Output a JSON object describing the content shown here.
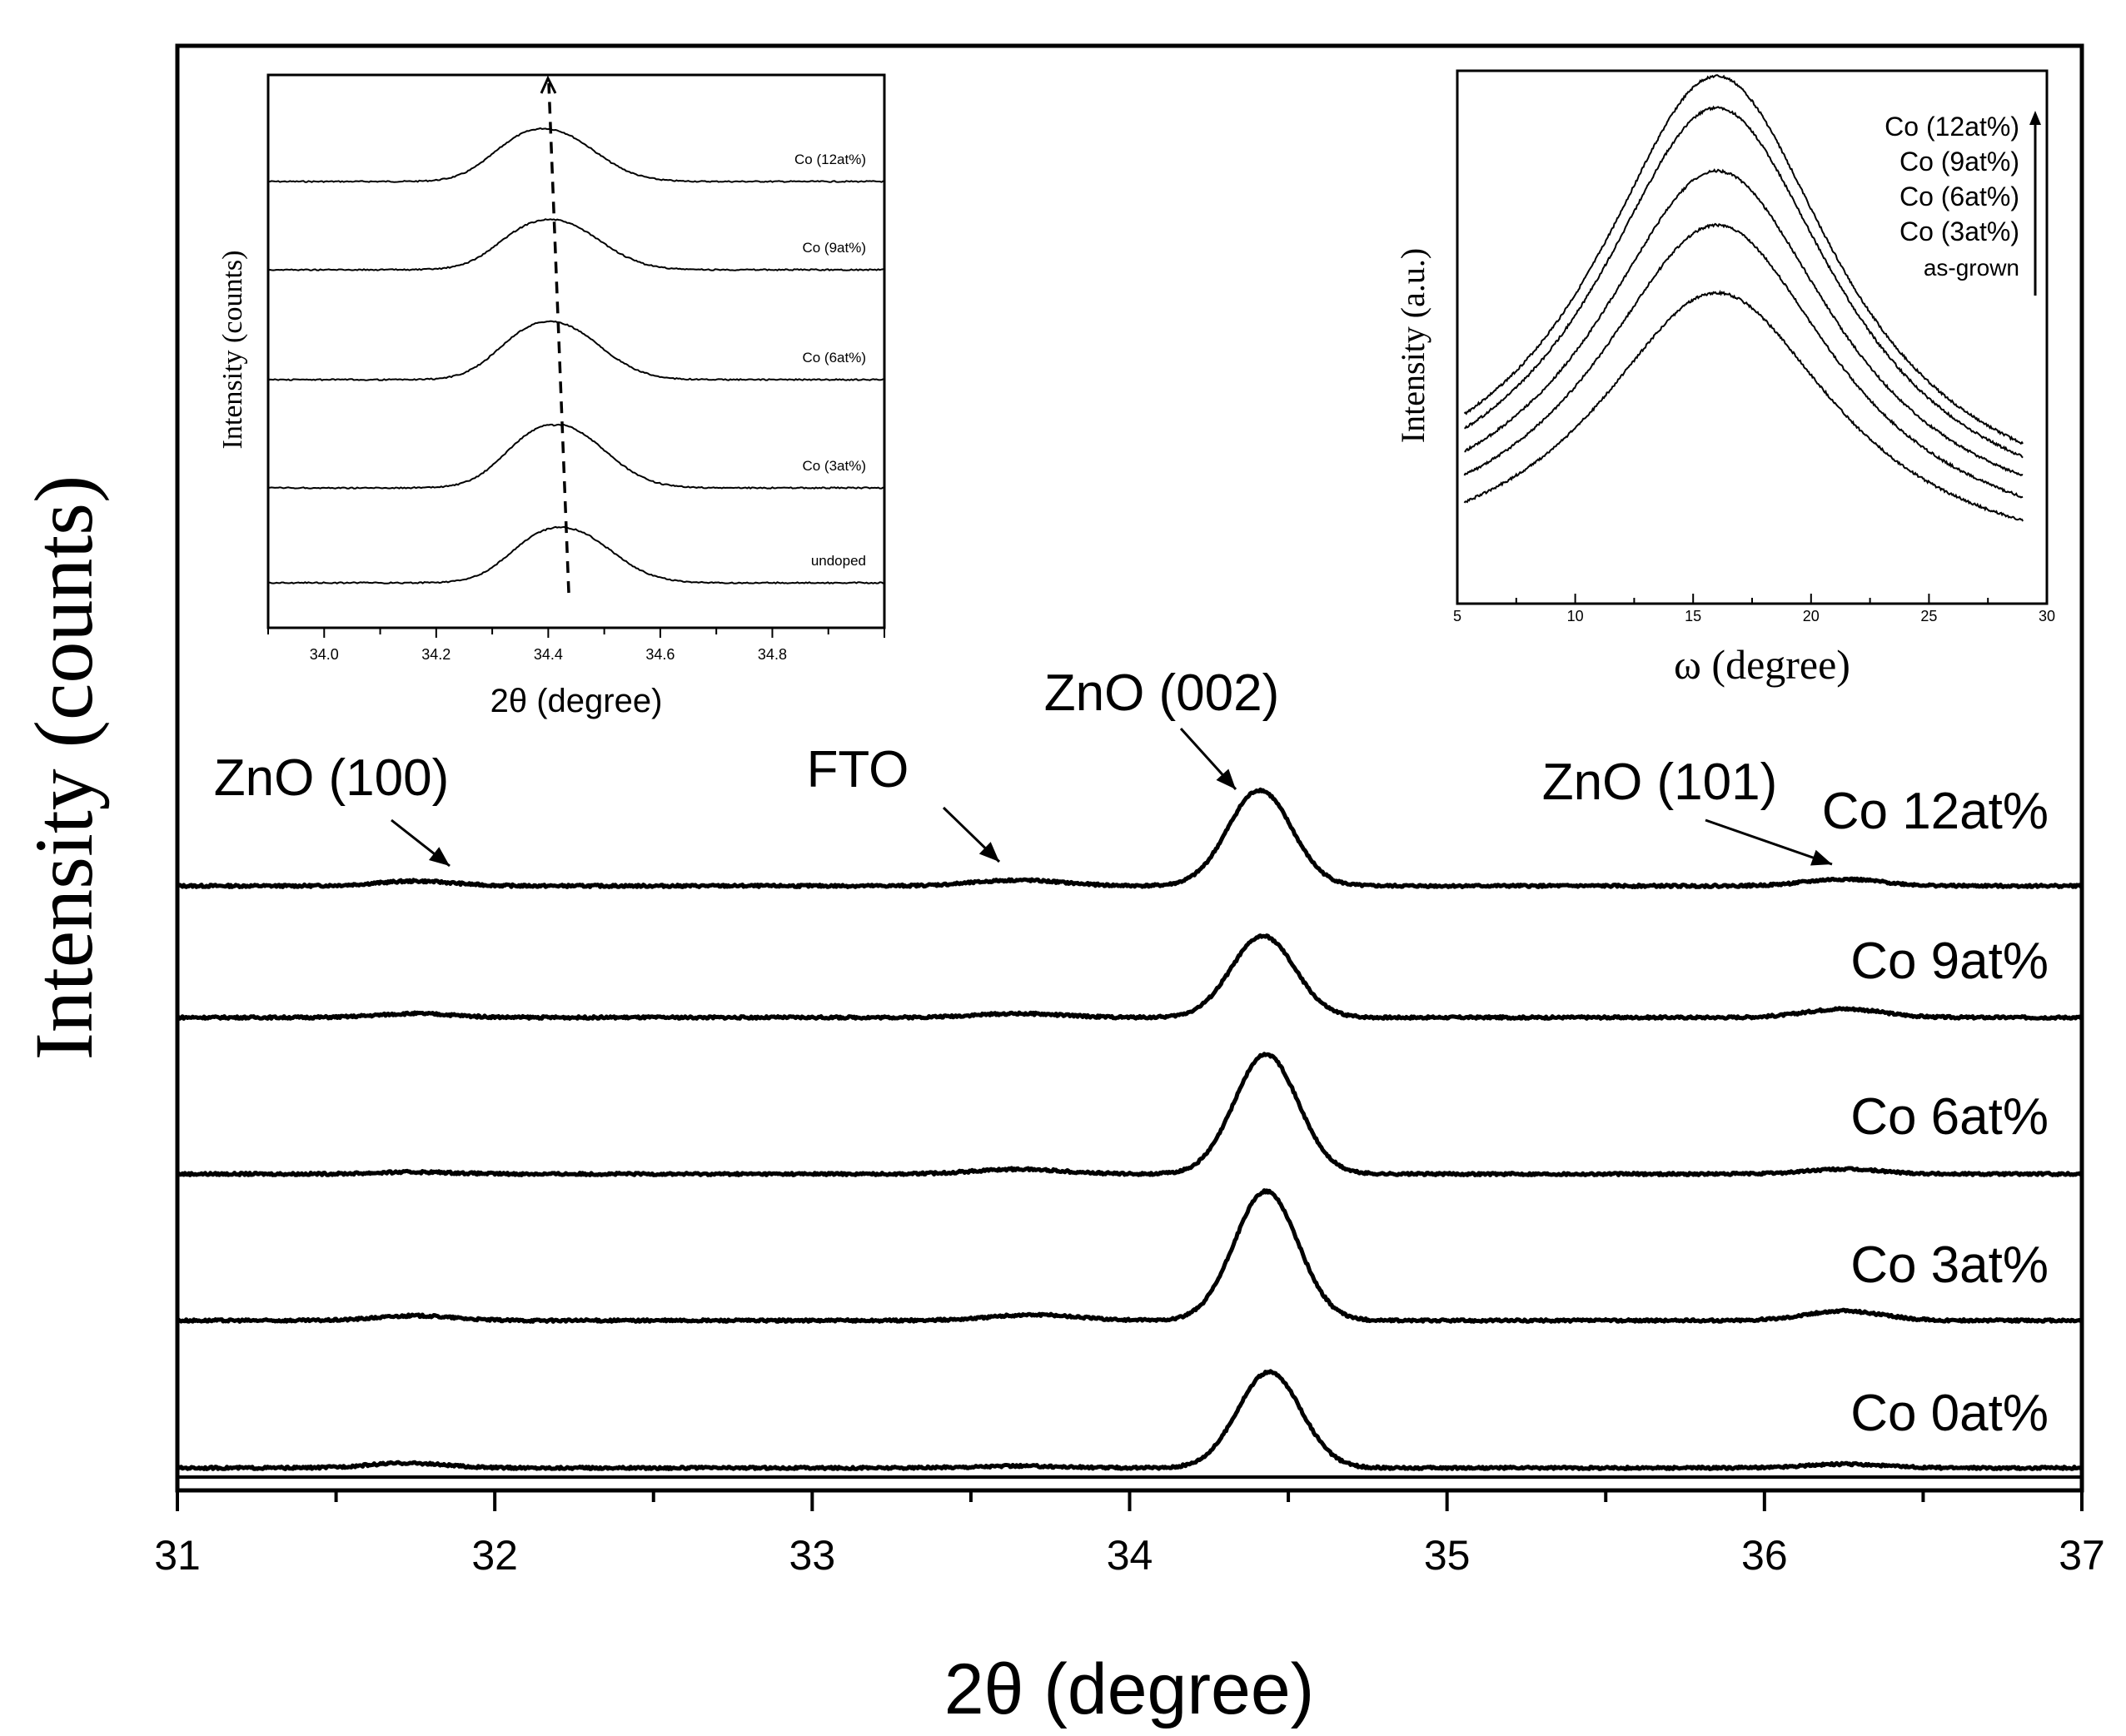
{
  "chart_data": [
    {
      "type": "line",
      "title": "",
      "xlabel": "2θ (degree)",
      "ylabel": "Intensity (counts)",
      "xlim": [
        31,
        37
      ],
      "x_ticks": [
        31,
        32,
        33,
        34,
        35,
        36,
        37
      ],
      "x_tick_labels": [
        "31",
        "32",
        "33",
        "34",
        "35",
        "36",
        "37"
      ],
      "y_ticks_shown": false,
      "grid": false,
      "profile_relative_intensity_units": "relative to ZnO (002) peak height = 1.0 per trace",
      "series": [
        {
          "name": "Co 12at%",
          "offset": 4,
          "peaks": [
            {
              "label": "ZnO (100)",
              "x": 31.75,
              "height": 0.05,
              "width": 0.12
            },
            {
              "label": "FTO",
              "x": 33.65,
              "height": 0.06,
              "width": 0.14
            },
            {
              "label": "ZnO (002)",
              "x": 34.41,
              "height": 1.0,
              "width": 0.1
            },
            {
              "label": "ZnO (101)",
              "x": 36.25,
              "height": 0.07,
              "width": 0.12
            }
          ]
        },
        {
          "name": "Co 9at%",
          "offset": 3,
          "peaks": [
            {
              "label": "ZnO (100)",
              "x": 31.75,
              "height": 0.04,
              "width": 0.12
            },
            {
              "label": "FTO",
              "x": 33.65,
              "height": 0.04,
              "width": 0.14
            },
            {
              "label": "ZnO (002)",
              "x": 34.42,
              "height": 0.85,
              "width": 0.1
            },
            {
              "label": "ZnO (101)",
              "x": 36.25,
              "height": 0.09,
              "width": 0.12
            }
          ]
        },
        {
          "name": "Co 6at%",
          "offset": 2,
          "peaks": [
            {
              "label": "ZnO (100)",
              "x": 31.75,
              "height": 0.02,
              "width": 0.12
            },
            {
              "label": "FTO",
              "x": 33.65,
              "height": 0.05,
              "width": 0.14
            },
            {
              "label": "ZnO (002)",
              "x": 34.43,
              "height": 1.25,
              "width": 0.1
            },
            {
              "label": "ZnO (101)",
              "x": 36.25,
              "height": 0.05,
              "width": 0.12
            }
          ]
        },
        {
          "name": "Co 3at%",
          "offset": 1,
          "peaks": [
            {
              "label": "ZnO (100)",
              "x": 31.75,
              "height": 0.05,
              "width": 0.12
            },
            {
              "label": "FTO",
              "x": 33.7,
              "height": 0.06,
              "width": 0.14
            },
            {
              "label": "ZnO (002)",
              "x": 34.43,
              "height": 1.35,
              "width": 0.1
            },
            {
              "label": "ZnO (101)",
              "x": 36.25,
              "height": 0.1,
              "width": 0.12
            }
          ]
        },
        {
          "name": "Co 0at%",
          "offset": 0,
          "peaks": [
            {
              "label": "ZnO (100)",
              "x": 31.72,
              "height": 0.05,
              "width": 0.12
            },
            {
              "label": "FTO",
              "x": 33.65,
              "height": 0.02,
              "width": 0.14
            },
            {
              "label": "ZnO (002)",
              "x": 34.44,
              "height": 1.0,
              "width": 0.1
            },
            {
              "label": "ZnO (101)",
              "x": 36.25,
              "height": 0.04,
              "width": 0.12
            }
          ]
        }
      ],
      "annotations": [
        {
          "text": "ZnO (100)",
          "points_to_x": 31.85
        },
        {
          "text": "FTO",
          "points_to_x": 33.62
        },
        {
          "text": "ZnO (002)",
          "points_to_x": 34.36
        },
        {
          "text": "ZnO (101)",
          "points_to_x": 36.2
        }
      ]
    },
    {
      "type": "line",
      "title": "",
      "xlabel": "2θ (degree)",
      "ylabel": "Intensity (counts)",
      "xlim": [
        33.9,
        35.0
      ],
      "x_ticks": [
        34.0,
        34.2,
        34.4,
        34.6,
        34.8
      ],
      "x_tick_labels": [
        "34.0",
        "34.2",
        "34.4",
        "34.6",
        "34.8"
      ],
      "series": [
        {
          "name": "Co (12at%)",
          "offset": 4,
          "peak_x": 34.41,
          "height": 1.0
        },
        {
          "name": "Co (9at%)",
          "offset": 3,
          "peak_x": 34.42,
          "height": 0.95
        },
        {
          "name": "Co (6at%)",
          "offset": 2,
          "peak_x": 34.42,
          "height": 1.1
        },
        {
          "name": "Co (3at%)",
          "offset": 1,
          "peak_x": 34.43,
          "height": 1.2
        },
        {
          "name": "undoped",
          "offset": 0,
          "peak_x": 34.44,
          "height": 1.05
        }
      ],
      "annotation": "dashed arrow tracing ZnO (002) peak shift from 34.45 to 34.40"
    },
    {
      "type": "line",
      "title": "",
      "xlabel": "ω (degree)",
      "ylabel": "Intensity (a.u.)",
      "xlim": [
        5,
        30
      ],
      "x_ticks": [
        5,
        10,
        15,
        20,
        25,
        30
      ],
      "x_tick_labels": [
        "5",
        "10",
        "15",
        "20",
        "25",
        "30"
      ],
      "legend_position": "top-right",
      "legend_order": [
        "Co (12at%)",
        "Co (9at%)",
        "Co (6at%)",
        "Co (3at%)",
        "as-grown"
      ],
      "series": [
        {
          "name": "Co (12at%)",
          "center": 16,
          "amplitude": 1.0,
          "baseline": 0.16
        },
        {
          "name": "Co (9at%)",
          "center": 16,
          "amplitude": 0.95,
          "baseline": 0.14
        },
        {
          "name": "Co (6at%)",
          "center": 16,
          "amplitude": 0.83,
          "baseline": 0.12
        },
        {
          "name": "Co (3at%)",
          "center": 16,
          "amplitude": 0.74,
          "baseline": 0.09
        },
        {
          "name": "as-grown",
          "center": 16,
          "amplitude": 0.62,
          "baseline": 0.06
        }
      ]
    }
  ]
}
